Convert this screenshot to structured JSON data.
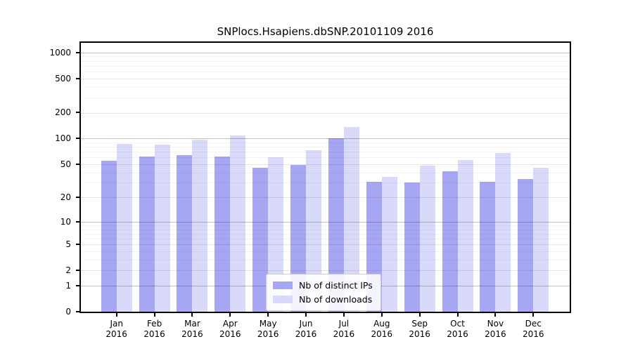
{
  "title": "SNPlocs.Hsapiens.dbSNP.20101109 2016",
  "chart_data": {
    "type": "bar",
    "title": "SNPlocs.Hsapiens.dbSNP.20101109 2016",
    "categories": [
      "Jan",
      "Feb",
      "Mar",
      "Apr",
      "May",
      "Jun",
      "Jul",
      "Aug",
      "Sep",
      "Oct",
      "Nov",
      "Dec"
    ],
    "year_label": "2016",
    "series": [
      {
        "name": "Nb of distinct IPs",
        "color": "#a6a6f2",
        "values": [
          55,
          61,
          64,
          62,
          45,
          49,
          100,
          31,
          30,
          41,
          31,
          33
        ]
      },
      {
        "name": "Nb of downloads",
        "color": "#d9d9fa",
        "values": [
          87,
          84,
          97,
          108,
          60,
          73,
          135,
          35,
          48,
          56,
          67,
          45
        ]
      }
    ],
    "y_scale": "log1p",
    "y_ticks": [
      0,
      1,
      2,
      5,
      10,
      20,
      50,
      100,
      200,
      500,
      1000
    ],
    "ylim": [
      0,
      1300
    ],
    "grid": true,
    "legend_position": "lower center",
    "xlabel": "",
    "ylabel": ""
  }
}
